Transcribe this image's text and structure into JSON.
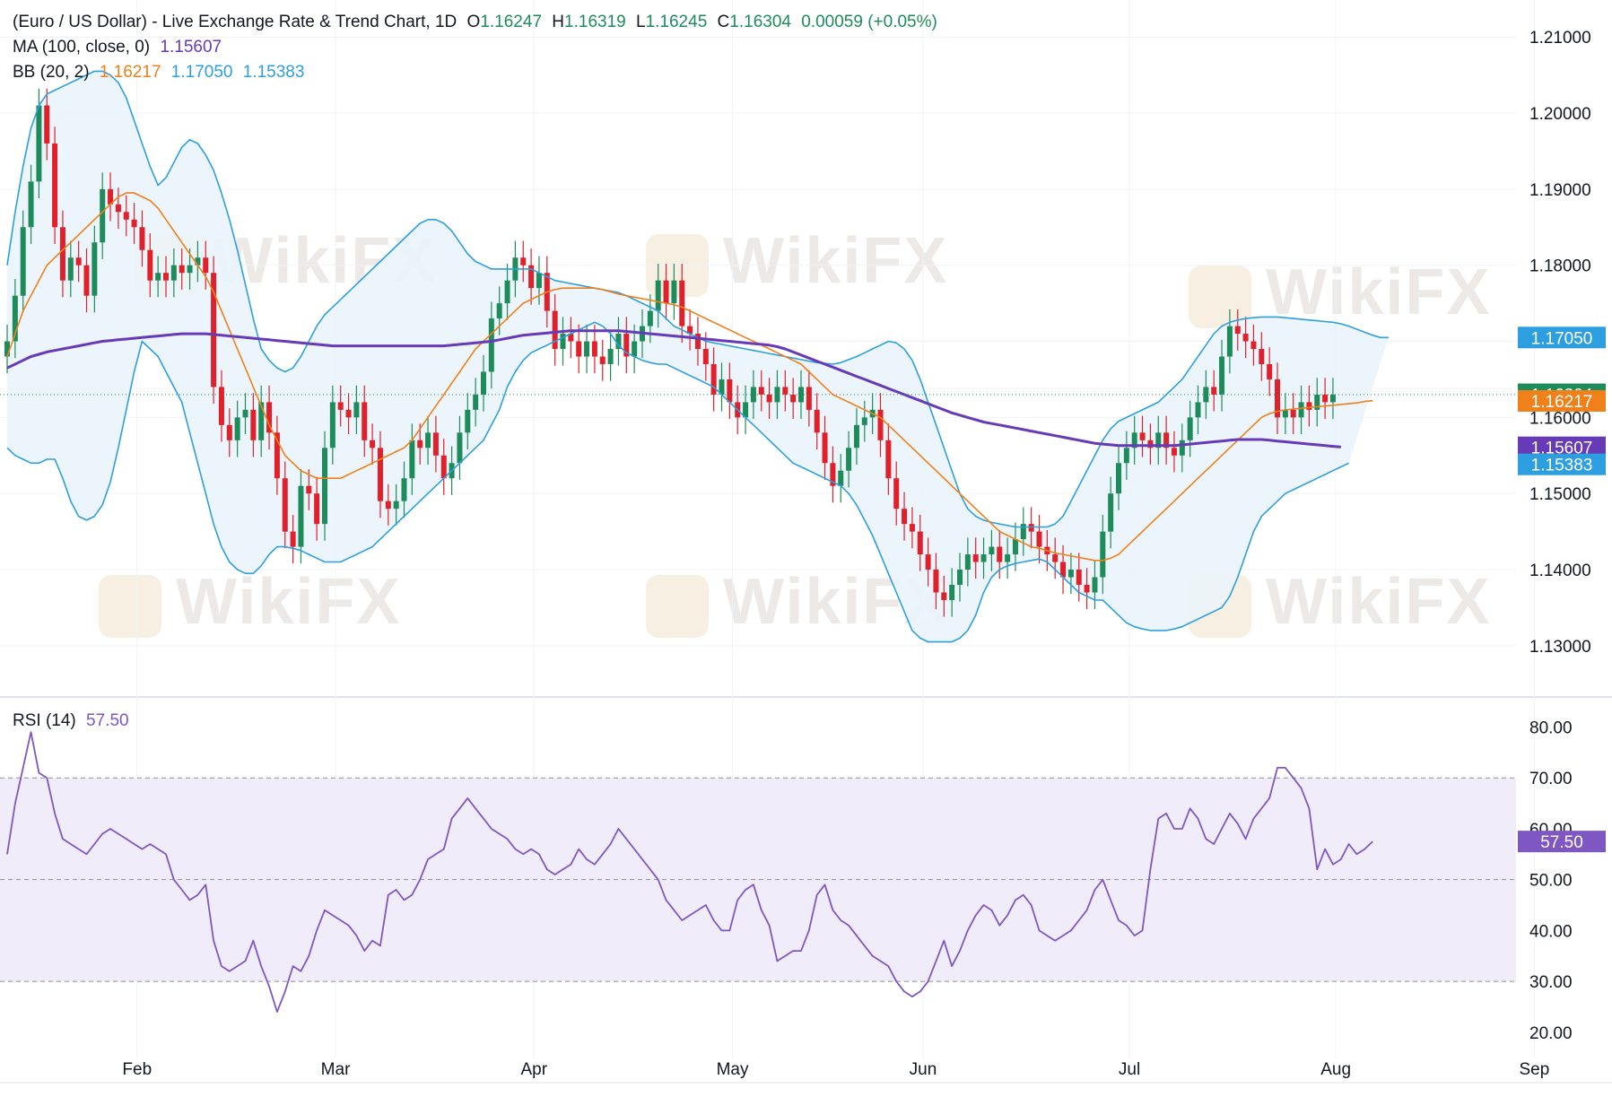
{
  "header": {
    "title": "(Euro / US Dollar) - Live Exchange Rate & Trend Chart, 1D",
    "open_label": "O",
    "open": "1.16247",
    "high_label": "H",
    "high": "1.16319",
    "low_label": "L",
    "low": "1.16245",
    "close_label": "C",
    "close": "1.16304",
    "change": "0.00059 (+0.05%)"
  },
  "ma_legend": {
    "label": "MA (100, close, 0)",
    "value": "1.15607"
  },
  "bb_legend": {
    "label": "BB (20, 2)",
    "basis": "1.16217",
    "upper": "1.17050",
    "lower": "1.15383"
  },
  "rsi_legend": {
    "label": "RSI (14)",
    "value": "57.50"
  },
  "watermark": "WikiFX",
  "colors": {
    "up": "#1e8c5a",
    "down": "#e0202a",
    "ma": "#673ab7",
    "bb_basis": "#f0801a",
    "bb_band": "#2d9fe0",
    "bb_fill": "#eaf4fb",
    "rsi": "#7e57c2",
    "rsi_fill": "#f1ecfa",
    "last_price_badge": "#1e8c5a"
  },
  "chart_data": [
    {
      "type": "candlestick",
      "title": "(Euro / US Dollar) - Live Exchange Rate & Trend Chart, 1D",
      "ylim": [
        1.1235,
        1.2125
      ],
      "y_ticks": [
        "1.21000",
        "1.20000",
        "1.19000",
        "1.18000",
        "1.17000",
        "1.16000",
        "1.15000",
        "1.14000",
        "1.13000"
      ],
      "y_tick_values": [
        1.21,
        1.2,
        1.19,
        1.18,
        1.17,
        1.16,
        1.15,
        1.14,
        1.13
      ],
      "x_ticks": [
        "Feb",
        "Mar",
        "Apr",
        "May",
        "Jun",
        "Jul",
        "Aug",
        "Sep"
      ],
      "x_tick_index": [
        8,
        33,
        58,
        83,
        107,
        133,
        159,
        184
      ],
      "badges": [
        {
          "value": "1.17050",
          "color": "#2d9fe0"
        },
        {
          "value": "1.16304",
          "color": "#1e8c5a"
        },
        {
          "value": "1.16217",
          "color": "#f0801a"
        },
        {
          "value": "1.15607",
          "color": "#673ab7"
        },
        {
          "value": "1.15383",
          "color": "#2d9fe0"
        }
      ],
      "closes": [
        1.17,
        1.176,
        1.185,
        1.191,
        1.201,
        1.196,
        1.185,
        1.178,
        1.181,
        1.18,
        1.176,
        1.183,
        1.19,
        1.188,
        1.187,
        1.186,
        1.185,
        1.182,
        1.178,
        1.179,
        1.178,
        1.18,
        1.179,
        1.18,
        1.181,
        1.179,
        1.164,
        1.159,
        1.157,
        1.16,
        1.161,
        1.157,
        1.162,
        1.158,
        1.152,
        1.145,
        1.143,
        1.151,
        1.15,
        1.146,
        1.156,
        1.162,
        1.161,
        1.16,
        1.162,
        1.157,
        1.156,
        1.149,
        1.148,
        1.149,
        1.152,
        1.157,
        1.156,
        1.158,
        1.155,
        1.152,
        1.154,
        1.158,
        1.161,
        1.163,
        1.166,
        1.173,
        1.175,
        1.178,
        1.181,
        1.18,
        1.177,
        1.179,
        1.174,
        1.169,
        1.171,
        1.17,
        1.168,
        1.17,
        1.168,
        1.167,
        1.169,
        1.171,
        1.168,
        1.17,
        1.172,
        1.174,
        1.178,
        1.175,
        1.178,
        1.172,
        1.171,
        1.169,
        1.167,
        1.163,
        1.165,
        1.162,
        1.16,
        1.162,
        1.164,
        1.163,
        1.162,
        1.164,
        1.163,
        1.162,
        1.164,
        1.161,
        1.158,
        1.154,
        1.151,
        1.153,
        1.156,
        1.159,
        1.16,
        1.161,
        1.157,
        1.152,
        1.148,
        1.146,
        1.145,
        1.142,
        1.14,
        1.137,
        1.136,
        1.138,
        1.14,
        1.142,
        1.141,
        1.142,
        1.143,
        1.141,
        1.142,
        1.144,
        1.146,
        1.145,
        1.143,
        1.142,
        1.141,
        1.139,
        1.14,
        1.138,
        1.137,
        1.139,
        1.145,
        1.15,
        1.154,
        1.156,
        1.158,
        1.157,
        1.156,
        1.158,
        1.156,
        1.155,
        1.157,
        1.16,
        1.162,
        1.164,
        1.163,
        1.168,
        1.172,
        1.171,
        1.17,
        1.169,
        1.167,
        1.165,
        1.16,
        1.161,
        1.16,
        1.162,
        1.161,
        1.163,
        1.162,
        1.163
      ],
      "ma100": [
        1.1665,
        1.167,
        1.1675,
        1.168,
        1.1683,
        1.1686,
        1.1688,
        1.169,
        1.1692,
        1.1694,
        1.1696,
        1.1698,
        1.17,
        1.1701,
        1.1702,
        1.1703,
        1.1704,
        1.1705,
        1.1706,
        1.1707,
        1.1708,
        1.1709,
        1.171,
        1.171,
        1.171,
        1.171,
        1.1709,
        1.1708,
        1.1707,
        1.1706,
        1.1705,
        1.1704,
        1.1703,
        1.1702,
        1.1701,
        1.17,
        1.1699,
        1.1698,
        1.1697,
        1.1696,
        1.1695,
        1.1694,
        1.1694,
        1.1694,
        1.1694,
        1.1694,
        1.1694,
        1.1694,
        1.1694,
        1.1694,
        1.1694,
        1.1694,
        1.1694,
        1.1694,
        1.1694,
        1.1694,
        1.1695,
        1.1696,
        1.1697,
        1.1698,
        1.1699,
        1.17,
        1.1702,
        1.1704,
        1.1706,
        1.1708,
        1.1709,
        1.171,
        1.1711,
        1.1712,
        1.1713,
        1.1714,
        1.1714,
        1.1714,
        1.1714,
        1.1714,
        1.1714,
        1.1714,
        1.1713,
        1.1712,
        1.1711,
        1.171,
        1.1709,
        1.1708,
        1.1707,
        1.1706,
        1.1705,
        1.1704,
        1.1703,
        1.1702,
        1.1701,
        1.17,
        1.1699,
        1.1698,
        1.1697,
        1.1696,
        1.1695,
        1.1693,
        1.169,
        1.1686,
        1.1682,
        1.1678,
        1.1674,
        1.167,
        1.1666,
        1.1662,
        1.1658,
        1.1654,
        1.165,
        1.1646,
        1.1642,
        1.1638,
        1.1634,
        1.163,
        1.1626,
        1.1622,
        1.1618,
        1.1614,
        1.161,
        1.1606,
        1.1603,
        1.16,
        1.1597,
        1.1594,
        1.1592,
        1.159,
        1.1588,
        1.1586,
        1.1584,
        1.1582,
        1.158,
        1.1578,
        1.1576,
        1.1574,
        1.1572,
        1.157,
        1.1568,
        1.1566,
        1.1565,
        1.1564,
        1.1563,
        1.1563,
        1.1563,
        1.1563,
        1.1563,
        1.1563,
        1.1563,
        1.1563,
        1.1564,
        1.1565,
        1.1566,
        1.1567,
        1.1568,
        1.1569,
        1.157,
        1.1571,
        1.1571,
        1.1571,
        1.1571,
        1.157,
        1.1569,
        1.1568,
        1.1567,
        1.1566,
        1.1565,
        1.1564,
        1.1563,
        1.1562,
        1.1561
      ],
      "bb_basis": [
        1.168,
        1.171,
        1.174,
        1.176,
        1.178,
        1.18,
        1.181,
        1.182,
        1.183,
        1.184,
        1.185,
        1.186,
        1.187,
        1.188,
        1.189,
        1.1895,
        1.1895,
        1.189,
        1.1885,
        1.1875,
        1.186,
        1.1845,
        1.183,
        1.1815,
        1.18,
        1.1785,
        1.1765,
        1.174,
        1.1715,
        1.169,
        1.1665,
        1.164,
        1.1615,
        1.159,
        1.157,
        1.155,
        1.154,
        1.153,
        1.1525,
        1.152,
        1.152,
        1.152,
        1.152,
        1.1525,
        1.153,
        1.1535,
        1.154,
        1.1545,
        1.155,
        1.1555,
        1.156,
        1.157,
        1.1585,
        1.16,
        1.1615,
        1.163,
        1.1645,
        1.166,
        1.1675,
        1.169,
        1.17,
        1.171,
        1.172,
        1.173,
        1.174,
        1.175,
        1.1755,
        1.176,
        1.1765,
        1.1768,
        1.177,
        1.177,
        1.177,
        1.177,
        1.177,
        1.1768,
        1.1765,
        1.1762,
        1.176,
        1.1758,
        1.1756,
        1.1754,
        1.1752,
        1.175,
        1.1748,
        1.1745,
        1.174,
        1.1735,
        1.173,
        1.1725,
        1.172,
        1.1715,
        1.171,
        1.1705,
        1.17,
        1.1695,
        1.169,
        1.1685,
        1.168,
        1.1675,
        1.167,
        1.166,
        1.165,
        1.164,
        1.163,
        1.1625,
        1.162,
        1.1615,
        1.161,
        1.1605,
        1.16,
        1.159,
        1.158,
        1.157,
        1.156,
        1.155,
        1.154,
        1.153,
        1.152,
        1.151,
        1.15,
        1.149,
        1.148,
        1.147,
        1.146,
        1.145,
        1.1445,
        1.144,
        1.1435,
        1.143,
        1.1428,
        1.1425,
        1.1422,
        1.142,
        1.1418,
        1.1416,
        1.1414,
        1.1412,
        1.1412,
        1.1415,
        1.142,
        1.143,
        1.144,
        1.145,
        1.146,
        1.147,
        1.148,
        1.149,
        1.15,
        1.151,
        1.152,
        1.153,
        1.154,
        1.155,
        1.156,
        1.157,
        1.158,
        1.159,
        1.16,
        1.1605,
        1.1608,
        1.161,
        1.1611,
        1.1612,
        1.1613,
        1.1614,
        1.1615,
        1.1616,
        1.1617,
        1.1618,
        1.1619,
        1.1621,
        1.1622
      ],
      "bb_upper": [
        1.18,
        1.187,
        1.193,
        1.198,
        1.201,
        1.2025,
        1.203,
        1.2035,
        1.204,
        1.2045,
        1.205,
        1.2055,
        1.2055,
        1.205,
        1.204,
        1.202,
        1.199,
        1.196,
        1.193,
        1.1905,
        1.1915,
        1.1935,
        1.1955,
        1.1965,
        1.196,
        1.1945,
        1.1925,
        1.1895,
        1.186,
        1.182,
        1.1775,
        1.173,
        1.169,
        1.1675,
        1.1665,
        1.166,
        1.1665,
        1.168,
        1.17,
        1.172,
        1.1735,
        1.1745,
        1.1755,
        1.1765,
        1.1775,
        1.1785,
        1.1795,
        1.1805,
        1.1815,
        1.1825,
        1.1835,
        1.1845,
        1.1855,
        1.186,
        1.186,
        1.1855,
        1.1845,
        1.183,
        1.1815,
        1.1805,
        1.18,
        1.1795,
        1.1795,
        1.1795,
        1.1795,
        1.1795,
        1.1795,
        1.179,
        1.1785,
        1.178,
        1.1778,
        1.1776,
        1.1774,
        1.1772,
        1.177,
        1.1768,
        1.1766,
        1.1764,
        1.176,
        1.1755,
        1.175,
        1.1745,
        1.174,
        1.173,
        1.172,
        1.1715,
        1.171,
        1.1705,
        1.17,
        1.1698,
        1.1696,
        1.1694,
        1.1692,
        1.169,
        1.1688,
        1.1686,
        1.1684,
        1.1682,
        1.168,
        1.1678,
        1.1676,
        1.1674,
        1.1672,
        1.1671,
        1.167,
        1.1672,
        1.1676,
        1.168,
        1.1685,
        1.169,
        1.1695,
        1.17,
        1.1698,
        1.169,
        1.1675,
        1.165,
        1.162,
        1.159,
        1.156,
        1.153,
        1.15,
        1.148,
        1.147,
        1.1465,
        1.1462,
        1.146,
        1.1458,
        1.1456,
        1.1456,
        1.1456,
        1.1456,
        1.1456,
        1.146,
        1.147,
        1.149,
        1.151,
        1.153,
        1.155,
        1.157,
        1.1585,
        1.1595,
        1.16,
        1.1605,
        1.161,
        1.1615,
        1.162,
        1.163,
        1.164,
        1.165,
        1.1665,
        1.168,
        1.1695,
        1.171,
        1.172,
        1.1725,
        1.1728,
        1.173,
        1.1731,
        1.1732,
        1.1732,
        1.1732,
        1.1731,
        1.173,
        1.1729,
        1.1728,
        1.1727,
        1.1726,
        1.1725,
        1.1723,
        1.172,
        1.1716,
        1.1712,
        1.1708,
        1.1705,
        1.1705
      ],
      "bb_lower": [
        1.156,
        1.155,
        1.1545,
        1.154,
        1.154,
        1.1545,
        1.1545,
        1.152,
        1.149,
        1.147,
        1.1465,
        1.147,
        1.1485,
        1.1515,
        1.156,
        1.161,
        1.166,
        1.17,
        1.169,
        1.168,
        1.166,
        1.164,
        1.162,
        1.158,
        1.154,
        1.15,
        1.146,
        1.143,
        1.141,
        1.14,
        1.1395,
        1.1395,
        1.1405,
        1.142,
        1.143,
        1.143,
        1.1428,
        1.1425,
        1.142,
        1.1415,
        1.141,
        1.141,
        1.141,
        1.1415,
        1.142,
        1.1425,
        1.143,
        1.144,
        1.145,
        1.146,
        1.147,
        1.148,
        1.149,
        1.15,
        1.151,
        1.152,
        1.153,
        1.154,
        1.155,
        1.156,
        1.157,
        1.159,
        1.161,
        1.164,
        1.166,
        1.1675,
        1.1685,
        1.169,
        1.1695,
        1.17,
        1.1705,
        1.171,
        1.1715,
        1.172,
        1.1725,
        1.172,
        1.171,
        1.1695,
        1.1685,
        1.168,
        1.1675,
        1.1672,
        1.167,
        1.167,
        1.1665,
        1.166,
        1.1655,
        1.165,
        1.1645,
        1.164,
        1.163,
        1.162,
        1.161,
        1.16,
        1.159,
        1.158,
        1.157,
        1.156,
        1.155,
        1.154,
        1.1535,
        1.153,
        1.1525,
        1.152,
        1.1515,
        1.151,
        1.15,
        1.1485,
        1.1465,
        1.1445,
        1.142,
        1.1395,
        1.137,
        1.1345,
        1.132,
        1.131,
        1.1305,
        1.1305,
        1.1305,
        1.1305,
        1.131,
        1.132,
        1.134,
        1.137,
        1.139,
        1.14,
        1.1405,
        1.1408,
        1.141,
        1.1412,
        1.1414,
        1.141,
        1.14,
        1.139,
        1.138,
        1.137,
        1.1365,
        1.136,
        1.136,
        1.135,
        1.134,
        1.133,
        1.1325,
        1.1322,
        1.132,
        1.132,
        1.132,
        1.1322,
        1.1325,
        1.133,
        1.1335,
        1.134,
        1.1345,
        1.135,
        1.1365,
        1.139,
        1.142,
        1.145,
        1.147,
        1.148,
        1.149,
        1.15,
        1.1505,
        1.151,
        1.1515,
        1.152,
        1.1525,
        1.153,
        1.1535,
        1.154
      ]
    },
    {
      "type": "line",
      "title": "RSI (14)",
      "ylim": [
        17.5,
        84.5
      ],
      "y_ticks": [
        "80.00",
        "70.00",
        "60.00",
        "50.00",
        "40.00",
        "30.00",
        "20.00"
      ],
      "y_tick_values": [
        80,
        70,
        60,
        50,
        40,
        30,
        20
      ],
      "bands": [
        70,
        50,
        30
      ],
      "last_value": "57.50",
      "values": [
        55,
        65,
        72,
        79,
        71,
        70,
        63,
        58,
        57,
        56,
        55,
        57,
        59,
        60,
        59,
        58,
        57,
        56,
        57,
        56,
        55,
        50,
        48,
        46,
        47,
        49,
        38,
        33,
        32,
        33,
        34,
        38,
        33,
        29,
        24,
        28,
        33,
        32,
        35,
        40,
        44,
        43,
        42,
        41,
        39,
        36,
        38,
        37,
        47,
        48,
        46,
        47,
        50,
        54,
        55,
        56,
        62,
        64,
        66,
        64,
        62,
        60,
        59,
        58,
        56,
        55,
        56,
        55,
        52,
        51,
        52,
        53,
        56,
        54,
        53,
        55,
        57,
        60,
        58,
        56,
        54,
        52,
        50,
        46,
        44,
        42,
        43,
        44,
        45,
        42,
        40,
        40,
        46,
        48,
        49,
        44,
        41,
        34,
        35,
        36,
        36,
        40,
        47,
        49,
        44,
        42,
        41,
        39,
        37,
        35,
        34,
        33,
        30,
        28,
        27,
        28,
        30,
        34,
        38,
        33,
        36,
        40,
        43,
        45,
        44,
        41,
        43,
        46,
        47,
        45,
        40,
        39,
        38,
        39,
        40,
        42,
        44,
        48,
        50,
        46,
        42,
        41,
        39,
        40,
        52,
        62,
        63,
        60,
        60,
        64,
        62,
        58,
        57,
        60,
        63,
        61,
        58,
        62,
        64,
        66,
        72,
        72,
        70,
        68,
        64,
        52,
        56,
        53,
        54,
        57,
        55,
        56,
        57.5
      ]
    }
  ]
}
